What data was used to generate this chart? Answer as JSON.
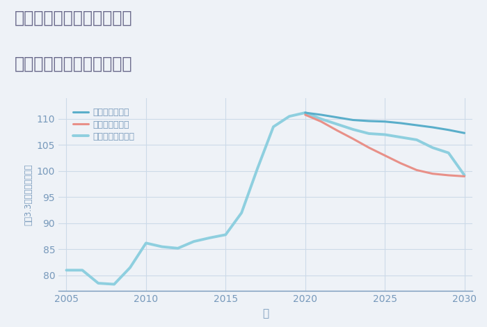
{
  "title_line1": "兵庫県姫路市夢前町莇野の",
  "title_line2": "中古マンションの価格推移",
  "xlabel": "年",
  "ylabel": "坪（3.3㎡）単価（万円）",
  "background_color": "#eef2f7",
  "plot_bg_color": "#eef2f7",
  "ylim": [
    77,
    114
  ],
  "xlim": [
    2004.5,
    2030.5
  ],
  "yticks": [
    80,
    85,
    90,
    95,
    100,
    105,
    110
  ],
  "xticks": [
    2005,
    2010,
    2015,
    2020,
    2025,
    2030
  ],
  "grid_color": "#ccdae8",
  "series": {
    "normal": {
      "label": "ノーマルシナリオ",
      "color": "#8ecfdf",
      "linewidth": 2.8,
      "years": [
        2005,
        2006,
        2007,
        2008,
        2009,
        2010,
        2011,
        2012,
        2013,
        2014,
        2015,
        2016,
        2017,
        2018,
        2019,
        2020,
        2021,
        2022,
        2023,
        2024,
        2025,
        2026,
        2027,
        2028,
        2029,
        2030
      ],
      "values": [
        81,
        81,
        78.5,
        78.3,
        81.5,
        86.2,
        85.5,
        85.2,
        86.5,
        87.2,
        87.8,
        92,
        100.5,
        108.5,
        110.5,
        111.2,
        110,
        109,
        108,
        107.2,
        107,
        106.5,
        106,
        104.5,
        103.5,
        99.2
      ]
    },
    "good": {
      "label": "グッドシナリオ",
      "color": "#5aaeca",
      "linewidth": 2.2,
      "years": [
        2020,
        2021,
        2022,
        2023,
        2024,
        2025,
        2026,
        2027,
        2028,
        2029,
        2030
      ],
      "values": [
        111.2,
        110.8,
        110.3,
        109.8,
        109.6,
        109.5,
        109.2,
        108.8,
        108.4,
        107.9,
        107.3
      ]
    },
    "bad": {
      "label": "バッドシナリオ",
      "color": "#e89088",
      "linewidth": 2.2,
      "years": [
        2020,
        2021,
        2022,
        2023,
        2024,
        2025,
        2026,
        2027,
        2028,
        2029,
        2030
      ],
      "values": [
        110.8,
        109.5,
        107.8,
        106.2,
        104.5,
        103.0,
        101.5,
        100.2,
        99.5,
        99.2,
        99.0
      ]
    }
  },
  "title_color": "#666688",
  "axis_color": "#7799bb",
  "tick_color": "#7799bb",
  "title_fontsize": 17,
  "tick_fontsize": 10,
  "legend_fontsize": 9
}
